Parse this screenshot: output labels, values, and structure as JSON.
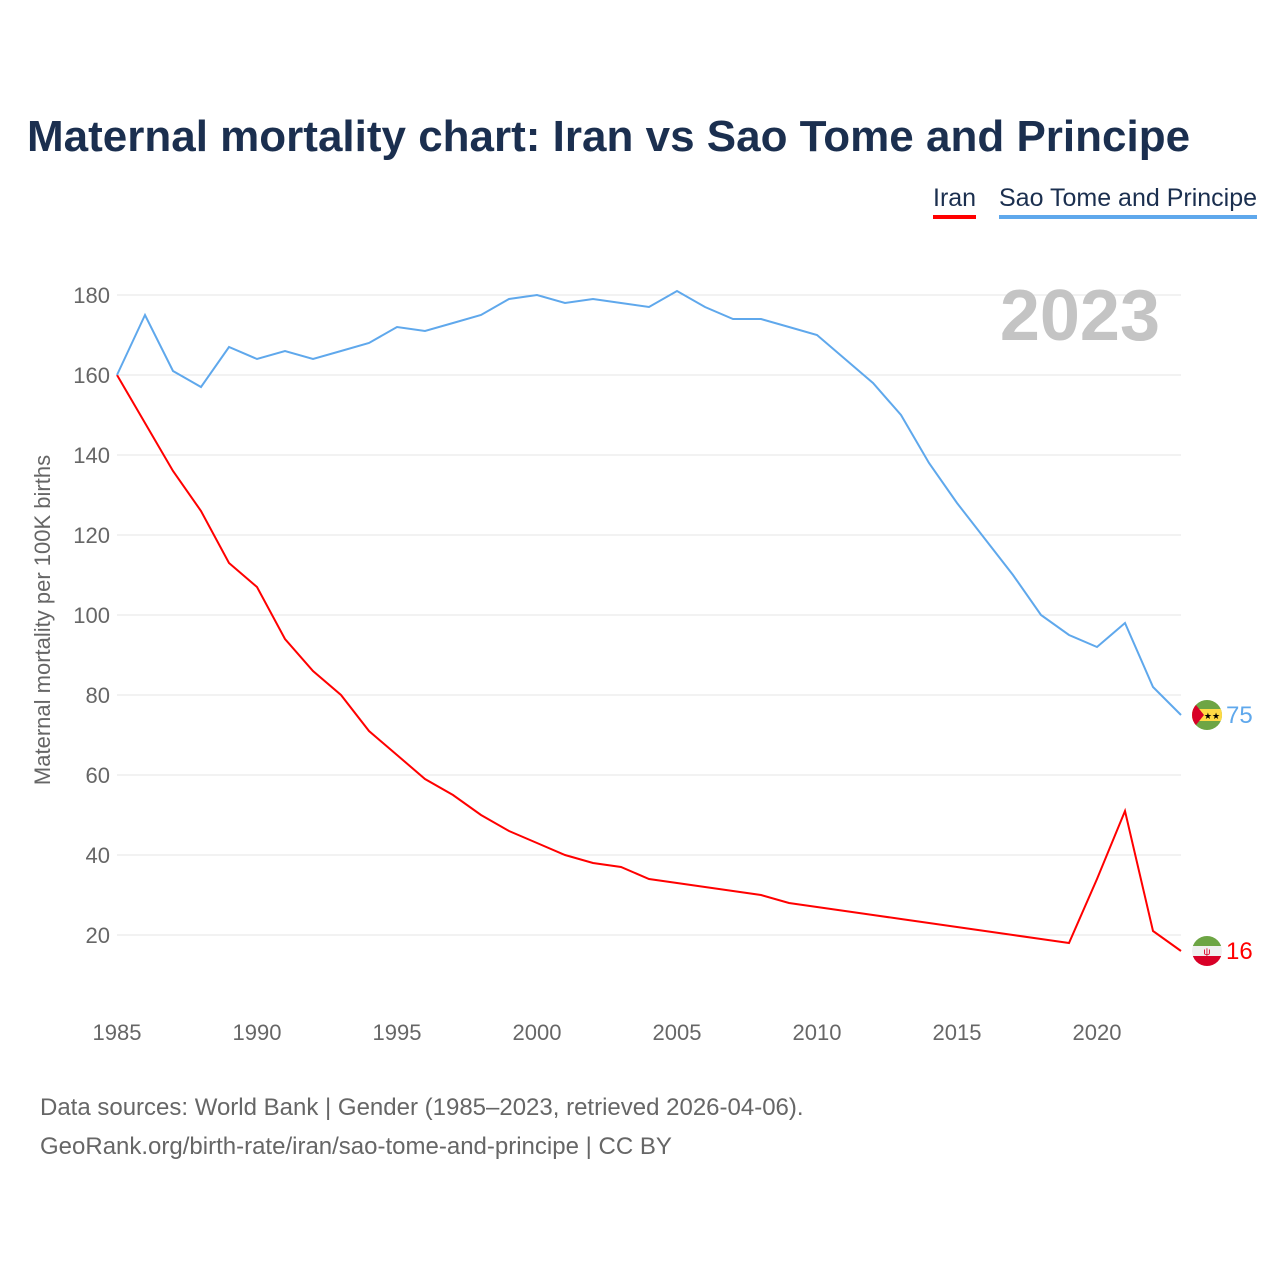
{
  "chart_data": {
    "type": "line",
    "title": "Maternal mortality chart: Iran vs Sao Tome and Principe",
    "ylabel": "Maternal mortality per 100K births",
    "xlabel": "",
    "year_label": "2023",
    "xlim": [
      1985,
      2023
    ],
    "ylim": [
      0,
      190
    ],
    "yticks": [
      20,
      40,
      60,
      80,
      100,
      120,
      140,
      160,
      180
    ],
    "xticks": [
      1985,
      1990,
      1995,
      2000,
      2005,
      2010,
      2015,
      2020
    ],
    "grid": true,
    "legend_position": "top-right",
    "x": [
      1985,
      1986,
      1987,
      1988,
      1989,
      1990,
      1991,
      1992,
      1993,
      1994,
      1995,
      1996,
      1997,
      1998,
      1999,
      2000,
      2001,
      2002,
      2003,
      2004,
      2005,
      2006,
      2007,
      2008,
      2009,
      2010,
      2011,
      2012,
      2013,
      2014,
      2015,
      2016,
      2017,
      2018,
      2019,
      2020,
      2021,
      2022,
      2023
    ],
    "series": [
      {
        "name": "Iran",
        "color": "#ff0000",
        "end_label": "16",
        "flag": "iran-flag",
        "values": [
          160,
          148,
          136,
          126,
          113,
          107,
          94,
          86,
          80,
          71,
          65,
          59,
          55,
          50,
          46,
          43,
          40,
          38,
          37,
          34,
          33,
          32,
          31,
          30,
          28,
          27,
          26,
          25,
          24,
          23,
          22,
          21,
          20,
          19,
          18,
          34,
          51,
          21,
          16
        ]
      },
      {
        "name": "Sao Tome and Principe",
        "color": "#5fa8ec",
        "end_label": "75",
        "flag": "sao-tome-flag",
        "values": [
          160,
          175,
          161,
          157,
          167,
          164,
          166,
          164,
          166,
          168,
          172,
          171,
          173,
          175,
          179,
          180,
          178,
          179,
          178,
          177,
          181,
          177,
          174,
          174,
          172,
          170,
          164,
          158,
          150,
          138,
          128,
          119,
          110,
          100,
          95,
          92,
          98,
          82,
          75
        ]
      }
    ]
  },
  "footer": {
    "line1": "Data sources: World Bank | Gender (1985–2023, retrieved 2026-04-06).",
    "line2": "GeoRank.org/birth-rate/iran/sao-tome-and-principe | CC BY"
  }
}
